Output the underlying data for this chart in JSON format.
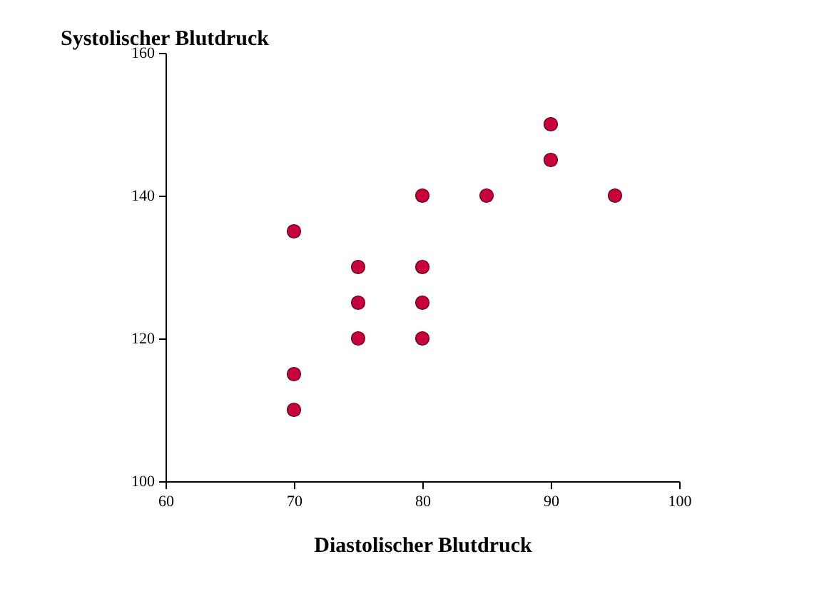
{
  "chart_data": {
    "type": "scatter",
    "xlabel": "Diastolischer Blutdruck",
    "ylabel": "Systolischer Blutdruck",
    "x": [
      70,
      70,
      70,
      75,
      75,
      75,
      80,
      80,
      80,
      80,
      85,
      90,
      90,
      95
    ],
    "series": [
      {
        "color": "#c8003c",
        "values": [
          135,
          115,
          110,
          130,
          125,
          120,
          140,
          130,
          125,
          120,
          140,
          150,
          145,
          140
        ]
      }
    ],
    "xlim": [
      60,
      100
    ],
    "xticks": [
      60,
      70,
      80,
      90,
      100
    ],
    "ylim": [
      100,
      160
    ],
    "yticks": [
      100,
      120,
      140,
      160
    ],
    "grid": false,
    "marker": "circle"
  }
}
